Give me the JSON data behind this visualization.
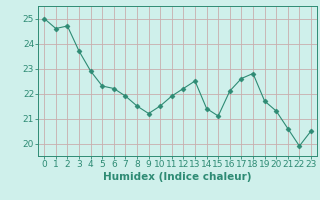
{
  "x": [
    0,
    1,
    2,
    3,
    4,
    5,
    6,
    7,
    8,
    9,
    10,
    11,
    12,
    13,
    14,
    15,
    16,
    17,
    18,
    19,
    20,
    21,
    22,
    23
  ],
  "y": [
    25.0,
    24.6,
    24.7,
    23.7,
    22.9,
    22.3,
    22.2,
    21.9,
    21.5,
    21.2,
    21.5,
    21.9,
    22.2,
    22.5,
    21.4,
    21.1,
    22.1,
    22.6,
    22.8,
    21.7,
    21.3,
    20.6,
    19.9,
    20.5
  ],
  "line_color": "#2e8b74",
  "marker": "D",
  "marker_size": 2.5,
  "bg_color": "#cff0eb",
  "plot_bg_color": "#cff0eb",
  "grid_color": "#c8aeae",
  "xlabel": "Humidex (Indice chaleur)",
  "xlabel_fontsize": 7.5,
  "tick_fontsize": 6.5,
  "ylim": [
    19.5,
    25.5
  ],
  "xlim": [
    -0.5,
    23.5
  ],
  "yticks": [
    20,
    21,
    22,
    23,
    24,
    25
  ],
  "xticks": [
    0,
    1,
    2,
    3,
    4,
    5,
    6,
    7,
    8,
    9,
    10,
    11,
    12,
    13,
    14,
    15,
    16,
    17,
    18,
    19,
    20,
    21,
    22,
    23
  ]
}
